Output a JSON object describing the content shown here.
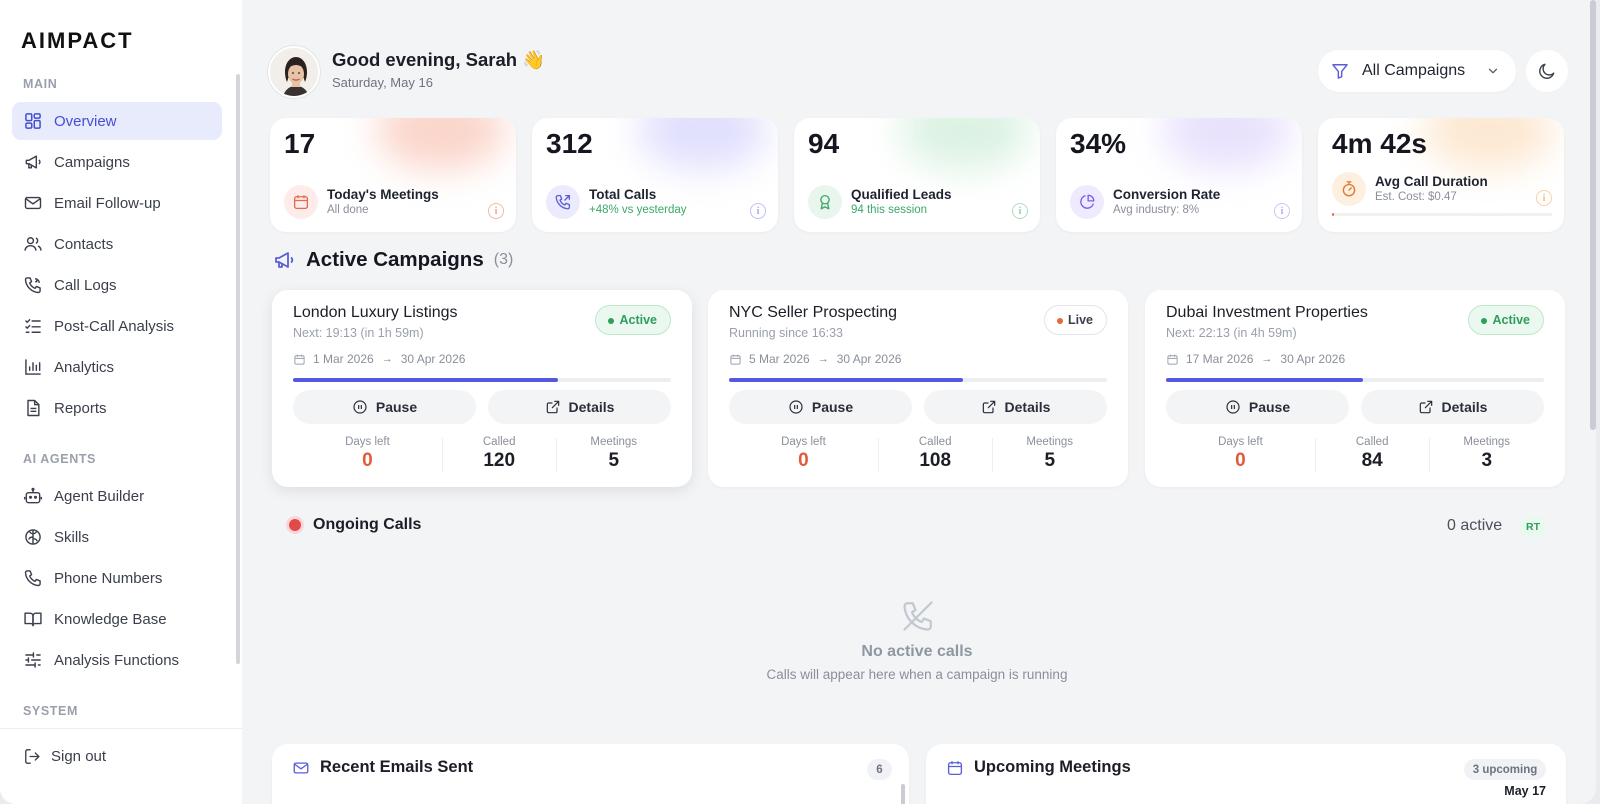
{
  "app": {
    "logo": "AIMPACT"
  },
  "sidebar": {
    "sections": {
      "main": "MAIN",
      "agents": "AI AGENTS",
      "system": "SYSTEM"
    },
    "main_items": [
      {
        "label": "Overview",
        "icon": "grid-icon",
        "active": true
      },
      {
        "label": "Campaigns",
        "icon": "megaphone-icon"
      },
      {
        "label": "Email Follow-up",
        "icon": "mail-icon"
      },
      {
        "label": "Contacts",
        "icon": "users-icon"
      },
      {
        "label": "Call Logs",
        "icon": "phone-log-icon"
      },
      {
        "label": "Post-Call Analysis",
        "icon": "checklist-icon"
      },
      {
        "label": "Analytics",
        "icon": "bar-chart-icon"
      },
      {
        "label": "Reports",
        "icon": "document-icon"
      }
    ],
    "agent_items": [
      {
        "label": "Agent Builder",
        "icon": "robot-icon"
      },
      {
        "label": "Skills",
        "icon": "brain-icon"
      },
      {
        "label": "Phone Numbers",
        "icon": "phone-icon"
      },
      {
        "label": "Knowledge Base",
        "icon": "book-icon"
      },
      {
        "label": "Analysis Functions",
        "icon": "sliders-icon"
      }
    ],
    "signout": "Sign out"
  },
  "header": {
    "greeting": "Good evening, Sarah 👋",
    "date": "Saturday, May 16",
    "filter_label": "All Campaigns"
  },
  "kpis": [
    {
      "value": "17",
      "label": "Today's Meetings",
      "sub": "All done",
      "accent": "#e46a52",
      "sub_color": "#8a8f9a"
    },
    {
      "value": "312",
      "label": "Total Calls",
      "sub": "+48% vs yesterday",
      "accent": "#5b5fd6",
      "sub_color": "#3aa867"
    },
    {
      "value": "94",
      "label": "Qualified Leads",
      "sub": "94 this session",
      "accent": "#3aa867",
      "sub_color": "#3aa867"
    },
    {
      "value": "34%",
      "label": "Conversion Rate",
      "sub": "Avg industry: 8%",
      "accent": "#7a5cf0",
      "sub_color": "#8a8f9a"
    },
    {
      "value": "4m 42s",
      "label": "Avg Call Duration",
      "sub": "Est. Cost: $0.47",
      "accent": "#ef9a3e",
      "sub_color": "#8a8f9a",
      "progress": 0.01
    }
  ],
  "active_campaigns": {
    "title": "Active Campaigns",
    "count": "(3)",
    "campaigns": [
      {
        "name": "London Luxury Listings",
        "next": "Next: 19:13 (in 1h 59m)",
        "status": "Active",
        "status_type": "active",
        "start": "1 Mar 2026",
        "end": "30 Apr 2026",
        "progress": 0.7,
        "pause_label": "Pause",
        "details_label": "Details",
        "days_left_label": "Days left",
        "days_left": "0",
        "called_label": "Called",
        "called": "120",
        "meetings_label": "Meetings",
        "meetings": "5"
      },
      {
        "name": "NYC Seller Prospecting",
        "next": "Running since 16:33",
        "status": "Live",
        "status_type": "live",
        "start": "5 Mar 2026",
        "end": "30 Apr 2026",
        "progress": 0.62,
        "pause_label": "Pause",
        "details_label": "Details",
        "days_left_label": "Days left",
        "days_left": "0",
        "called_label": "Called",
        "called": "108",
        "meetings_label": "Meetings",
        "meetings": "5"
      },
      {
        "name": "Dubai Investment Properties",
        "next": "Next: 22:13 (in 4h 59m)",
        "status": "Active",
        "status_type": "active",
        "start": "17 Mar 2026",
        "end": "30 Apr 2026",
        "progress": 0.52,
        "pause_label": "Pause",
        "details_label": "Details",
        "days_left_label": "Days left",
        "days_left": "0",
        "called_label": "Called",
        "called": "84",
        "meetings_label": "Meetings",
        "meetings": "3"
      }
    ]
  },
  "ongoing": {
    "title": "Ongoing Calls",
    "active_count": "0 active",
    "rt_badge": "RT",
    "empty_title": "No active calls",
    "empty_sub": "Calls will appear here when a campaign is running"
  },
  "emails_panel": {
    "title": "Recent Emails Sent",
    "count": "6"
  },
  "meetings_panel": {
    "title": "Upcoming Meetings",
    "count": "3 upcoming",
    "first_date": "May 17"
  }
}
